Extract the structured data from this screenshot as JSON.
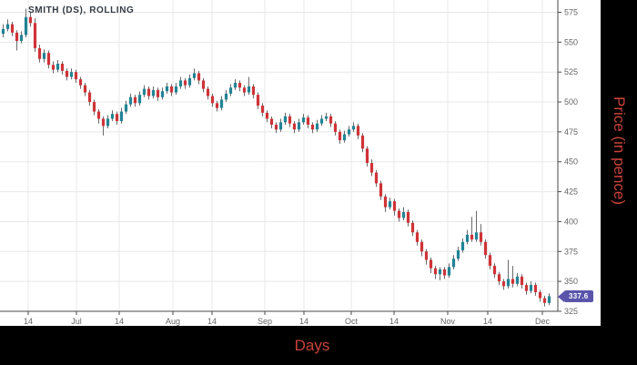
{
  "chart": {
    "title": "SMITH (DS), ROLLING",
    "x_axis": {
      "title": "Days"
    },
    "y_axis": {
      "title": "Price (in pence)"
    },
    "last_price_label": "337.6"
  },
  "chart_data": {
    "type": "candlestick",
    "series_name": "SMITH (DS), ROLLING",
    "title": "SMITH (DS), ROLLING",
    "xlabel": "Days",
    "ylabel": "Price (in pence)",
    "ylim": [
      325,
      585
    ],
    "grid": true,
    "last_close": 337.6,
    "y_ticks": [
      575,
      550,
      525,
      500,
      475,
      450,
      425,
      400,
      375,
      350,
      325
    ],
    "x_axis_ticks": [
      {
        "label": "14",
        "x": 31
      },
      {
        "label": "Jul",
        "x": 84
      },
      {
        "label": "14",
        "x": 131
      },
      {
        "label": "Aug",
        "x": 190
      },
      {
        "label": "14",
        "x": 233
      },
      {
        "label": "Sep",
        "x": 291
      },
      {
        "label": "14",
        "x": 334
      },
      {
        "label": "Oct",
        "x": 386
      },
      {
        "label": "14",
        "x": 433
      },
      {
        "label": "Nov",
        "x": 492
      },
      {
        "label": "14",
        "x": 536
      },
      {
        "label": "Dec",
        "x": 596
      }
    ],
    "candles_format": [
      "open",
      "high",
      "low",
      "close"
    ],
    "candles": [
      [
        557,
        565,
        554,
        561
      ],
      [
        561,
        569,
        559,
        565
      ],
      [
        565,
        567,
        555,
        558
      ],
      [
        558,
        560,
        543,
        551
      ],
      [
        551,
        559,
        549,
        556
      ],
      [
        556,
        578,
        554,
        571
      ],
      [
        571,
        575,
        563,
        566
      ],
      [
        566,
        570,
        542,
        545
      ],
      [
        545,
        548,
        533,
        536
      ],
      [
        536,
        544,
        533,
        541
      ],
      [
        541,
        543,
        528,
        531
      ],
      [
        531,
        534,
        524,
        527
      ],
      [
        527,
        535,
        525,
        532
      ],
      [
        532,
        534,
        523,
        526
      ],
      [
        526,
        528,
        518,
        521
      ],
      [
        521,
        528,
        519,
        525
      ],
      [
        525,
        527,
        516,
        519
      ],
      [
        519,
        521,
        511,
        514
      ],
      [
        514,
        516,
        505,
        508
      ],
      [
        508,
        510,
        497,
        500
      ],
      [
        500,
        502,
        489,
        492
      ],
      [
        492,
        494,
        482,
        486
      ],
      [
        486,
        488,
        472,
        480
      ],
      [
        480,
        489,
        478,
        486
      ],
      [
        486,
        493,
        484,
        490
      ],
      [
        490,
        492,
        481,
        484
      ],
      [
        484,
        495,
        482,
        492
      ],
      [
        492,
        501,
        490,
        498
      ],
      [
        498,
        507,
        496,
        504
      ],
      [
        504,
        506,
        496,
        499
      ],
      [
        499,
        509,
        497,
        506
      ],
      [
        506,
        514,
        504,
        511
      ],
      [
        511,
        513,
        502,
        505
      ],
      [
        505,
        513,
        503,
        510
      ],
      [
        510,
        512,
        501,
        504
      ],
      [
        504,
        512,
        502,
        509
      ],
      [
        509,
        516,
        507,
        513
      ],
      [
        513,
        515,
        505,
        508
      ],
      [
        508,
        516,
        506,
        513
      ],
      [
        513,
        521,
        511,
        518
      ],
      [
        518,
        520,
        511,
        514
      ],
      [
        514,
        523,
        512,
        520
      ],
      [
        520,
        528,
        518,
        524
      ],
      [
        524,
        526,
        515,
        518
      ],
      [
        518,
        520,
        508,
        511
      ],
      [
        511,
        513,
        502,
        505
      ],
      [
        505,
        507,
        496,
        499
      ],
      [
        499,
        501,
        492,
        495
      ],
      [
        495,
        505,
        493,
        502
      ],
      [
        502,
        510,
        500,
        507
      ],
      [
        507,
        515,
        505,
        512
      ],
      [
        512,
        519,
        510,
        516
      ],
      [
        516,
        518,
        509,
        512
      ],
      [
        512,
        514,
        505,
        508
      ],
      [
        508,
        521,
        506,
        513
      ],
      [
        513,
        515,
        503,
        506
      ],
      [
        506,
        508,
        494,
        497
      ],
      [
        497,
        499,
        488,
        491
      ],
      [
        491,
        493,
        483,
        486
      ],
      [
        486,
        488,
        478,
        481
      ],
      [
        481,
        483,
        474,
        477
      ],
      [
        477,
        486,
        475,
        483
      ],
      [
        483,
        491,
        481,
        488
      ],
      [
        488,
        490,
        479,
        482
      ],
      [
        482,
        484,
        474,
        477
      ],
      [
        477,
        486,
        475,
        483
      ],
      [
        483,
        490,
        481,
        487
      ],
      [
        487,
        489,
        478,
        481
      ],
      [
        481,
        483,
        474,
        477
      ],
      [
        477,
        485,
        475,
        482
      ],
      [
        482,
        489,
        480,
        486
      ],
      [
        486,
        491,
        484,
        488
      ],
      [
        488,
        490,
        479,
        482
      ],
      [
        482,
        484,
        472,
        475
      ],
      [
        475,
        477,
        465,
        468
      ],
      [
        468,
        476,
        466,
        473
      ],
      [
        473,
        480,
        471,
        477
      ],
      [
        477,
        483,
        475,
        480
      ],
      [
        480,
        482,
        469,
        472
      ],
      [
        472,
        474,
        458,
        461
      ],
      [
        461,
        463,
        446,
        449
      ],
      [
        449,
        452,
        438,
        441
      ],
      [
        441,
        443,
        429,
        432
      ],
      [
        432,
        434,
        418,
        421
      ],
      [
        421,
        423,
        408,
        412
      ],
      [
        412,
        420,
        410,
        417
      ],
      [
        417,
        419,
        405,
        409
      ],
      [
        409,
        411,
        400,
        403
      ],
      [
        403,
        412,
        401,
        408
      ],
      [
        408,
        410,
        396,
        399
      ],
      [
        399,
        401,
        388,
        391
      ],
      [
        391,
        393,
        380,
        383
      ],
      [
        383,
        385,
        371,
        375
      ],
      [
        375,
        377,
        364,
        368
      ],
      [
        368,
        370,
        357,
        361
      ],
      [
        361,
        363,
        352,
        356
      ],
      [
        356,
        362,
        351,
        360
      ],
      [
        360,
        362,
        352,
        355
      ],
      [
        355,
        365,
        353,
        362
      ],
      [
        362,
        372,
        360,
        369
      ],
      [
        369,
        379,
        367,
        376
      ],
      [
        376,
        386,
        374,
        383
      ],
      [
        383,
        393,
        381,
        389
      ],
      [
        389,
        404,
        383,
        385
      ],
      [
        385,
        409,
        383,
        391
      ],
      [
        391,
        398,
        380,
        383
      ],
      [
        383,
        385,
        369,
        372
      ],
      [
        372,
        374,
        360,
        363
      ],
      [
        363,
        365,
        353,
        356
      ],
      [
        356,
        358,
        347,
        350
      ],
      [
        350,
        352,
        343,
        346
      ],
      [
        346,
        368,
        344,
        352
      ],
      [
        352,
        363,
        345,
        348
      ],
      [
        348,
        357,
        346,
        354
      ],
      [
        354,
        356,
        344,
        347
      ],
      [
        347,
        349,
        339,
        342
      ],
      [
        342,
        350,
        340,
        347
      ],
      [
        347,
        349,
        338,
        341
      ],
      [
        341,
        343,
        333,
        336
      ],
      [
        336,
        338,
        329,
        332
      ],
      [
        332,
        340,
        330,
        337.6
      ]
    ],
    "colors": {
      "up": "#208495",
      "down": "#cf3337",
      "wick": "#6b6b6b",
      "grid": "#e8e8e8",
      "axis": "#4a4a4a",
      "tick_label": "#666666",
      "badge": "#5a55ab",
      "axis_title": "#c9423a",
      "title": "#333b43"
    },
    "legend_position": "none"
  }
}
